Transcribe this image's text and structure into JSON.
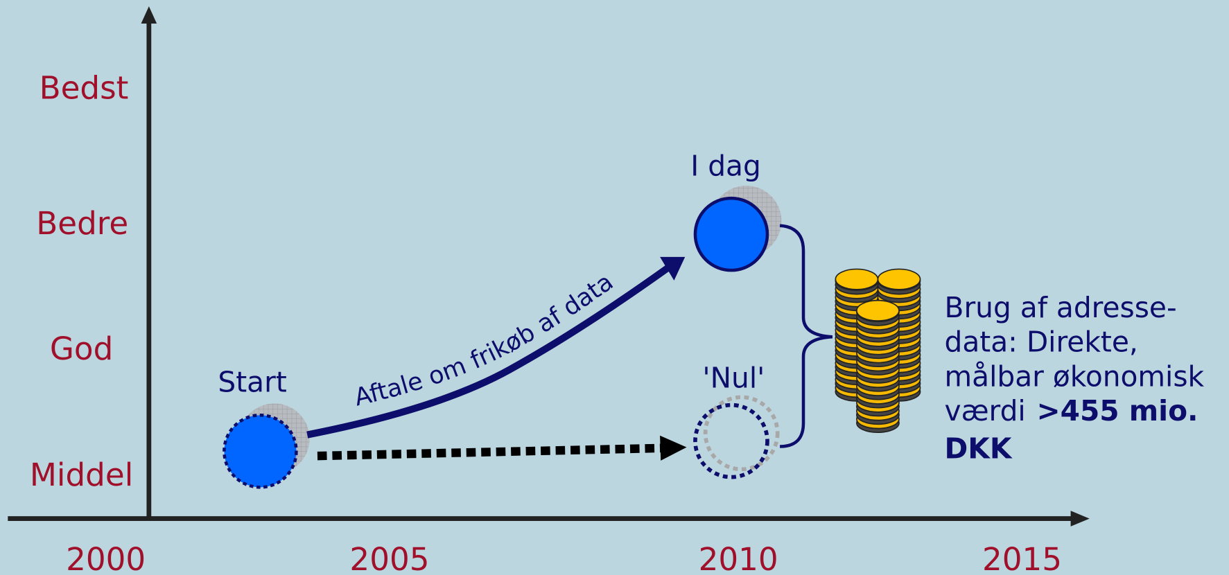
{
  "y_axis": {
    "labels": [
      "Bedst",
      "Bedre",
      "God",
      "Middel"
    ]
  },
  "x_axis": {
    "labels": [
      "2000",
      "2005",
      "2010",
      "2015"
    ]
  },
  "nodes": [
    {
      "label": "Start"
    },
    {
      "label": "I dag"
    },
    {
      "label": "'Nul'"
    }
  ],
  "arrow_label": "Aftale om frikøb af data",
  "note": {
    "lines": [
      "Brug af adresse-",
      "data: Direkte,",
      "målbar økonomisk",
      "værdi"
    ],
    "highlight": [
      ">455 mio.",
      "DKK"
    ]
  }
}
